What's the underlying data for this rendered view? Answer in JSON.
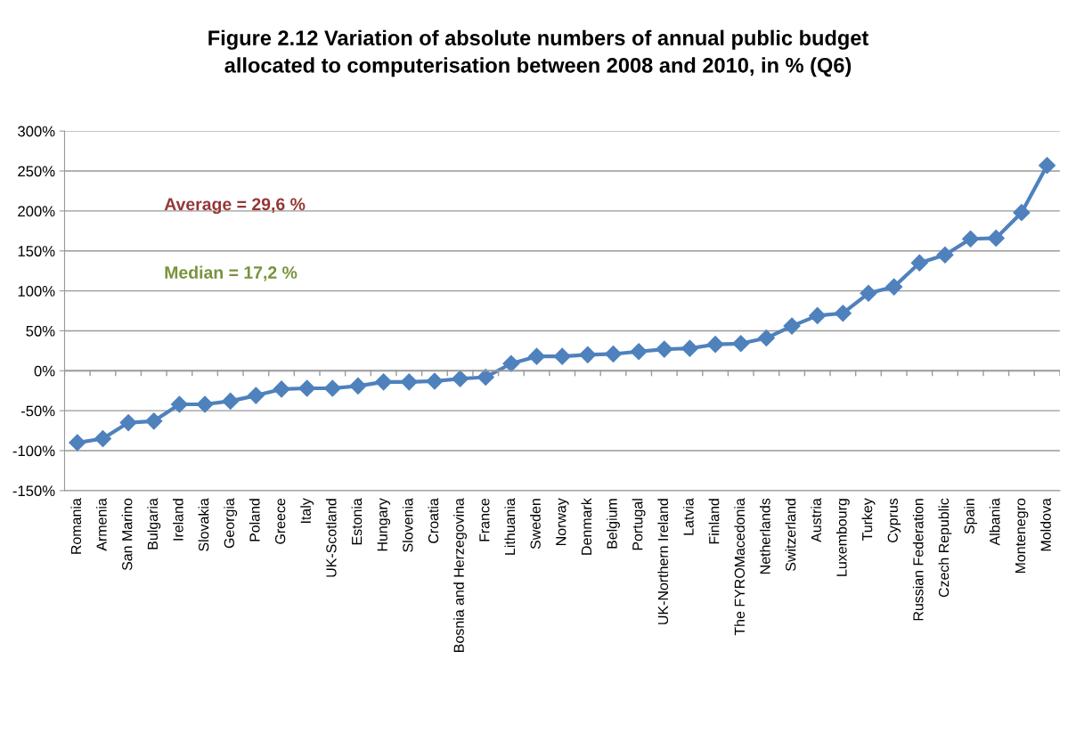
{
  "chart_data": {
    "type": "line",
    "title": "Figure 2.12 Variation of absolute numbers of annual public budget\nallocated to computerisation between 2008 and 2010, in % (Q6)",
    "categories": [
      "Romania",
      "Armenia",
      "San Marino",
      "Bulgaria",
      "Ireland",
      "Slovakia",
      "Georgia",
      "Poland",
      "Greece",
      "Italy",
      "UK-Scotland",
      "Estonia",
      "Hungary",
      "Slovenia",
      "Croatia",
      "Bosnia and Herzegovina",
      "France",
      "Lithuania",
      "Sweden",
      "Norway",
      "Denmark",
      "Belgium",
      "Portugal",
      "UK-Northern Ireland",
      "Latvia",
      "Finland",
      "The FYROMacedonia",
      "Netherlands",
      "Switzerland",
      "Austria",
      "Luxembourg",
      "Turkey",
      "Cyprus",
      "Russian Federation",
      "Czech Republic",
      "Spain",
      "Albania",
      "Montenegro",
      "Moldova"
    ],
    "series": [
      {
        "color": "#4f81bd",
        "values": [
          -90,
          -85,
          -65,
          -63,
          -42,
          -42,
          -38,
          -31,
          -23,
          -22,
          -22,
          -19,
          -14,
          -14,
          -13,
          -10,
          -8,
          9,
          18,
          18,
          20,
          21,
          24,
          27,
          28,
          33,
          34,
          41,
          56,
          69,
          72,
          97,
          105,
          135,
          145,
          165,
          166,
          198,
          257
        ]
      }
    ],
    "ylim": [
      -150,
      300
    ],
    "yticks": [
      {
        "value": -150,
        "label": "-150%"
      },
      {
        "value": -100,
        "label": "-100%"
      },
      {
        "value": -50,
        "label": "-50%"
      },
      {
        "value": 0,
        "label": "0%"
      },
      {
        "value": 50,
        "label": "50%"
      },
      {
        "value": 100,
        "label": "100%"
      },
      {
        "value": 150,
        "label": "150%"
      },
      {
        "value": 200,
        "label": "200%"
      },
      {
        "value": 250,
        "label": "250%"
      },
      {
        "value": 300,
        "label": "300%"
      }
    ],
    "annotations": [
      "Average = 29,6 %",
      "Median = 17,2 %"
    ],
    "grid": "y",
    "marker": "diamond",
    "line_style": "solid",
    "legend": false
  }
}
